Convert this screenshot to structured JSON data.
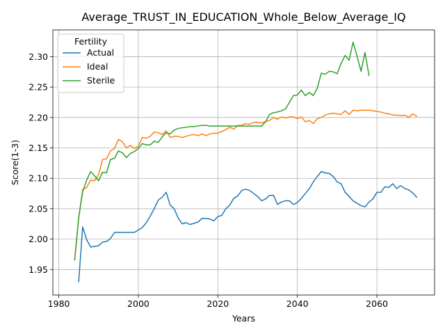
{
  "chart_data": {
    "type": "line",
    "title": "Average_TRUST_IN_EDUCATION_Whole_Below_Average_IQ",
    "xlabel": "Years",
    "ylabel": "Score(1-3)",
    "xlim": [
      1978.5,
      2074.5
    ],
    "ylim": [
      1.908,
      2.344
    ],
    "xticks": [
      1980,
      2000,
      2020,
      2040,
      2060
    ],
    "yticks": [
      1.95,
      2.0,
      2.05,
      2.1,
      2.15,
      2.2,
      2.25,
      2.3
    ],
    "grid": true,
    "legend": {
      "title": "Fertility",
      "placement": "top-left",
      "entries": [
        "Actual",
        "Ideal",
        "Sterile"
      ]
    },
    "series": [
      {
        "name": "Actual",
        "color": "#1f77b4",
        "x": [
          1985,
          1986,
          1987,
          1988,
          1989,
          1990,
          1991,
          1992,
          1993,
          1994,
          1995,
          1996,
          1997,
          1998,
          1999,
          2000,
          2001,
          2002,
          2003,
          2004,
          2005,
          2006,
          2007,
          2008,
          2009,
          2010,
          2011,
          2012,
          2013,
          2014,
          2015,
          2016,
          2017,
          2018,
          2019,
          2020,
          2021,
          2022,
          2023,
          2024,
          2025,
          2026,
          2027,
          2028,
          2029,
          2030,
          2031,
          2032,
          2033,
          2034,
          2035,
          2036,
          2037,
          2038,
          2039,
          2040,
          2041,
          2042,
          2043,
          2044,
          2045,
          2046,
          2047,
          2048,
          2049,
          2050,
          2051,
          2052,
          2053,
          2054,
          2055,
          2056,
          2057,
          2058,
          2059,
          2060,
          2061,
          2062,
          2063,
          2064,
          2065,
          2066,
          2067,
          2068,
          2069,
          2070
        ],
        "y": [
          1.93,
          2.02,
          1.999,
          1.987,
          1.988,
          1.989,
          1.995,
          1.996,
          2.001,
          2.011,
          2.011,
          2.011,
          2.011,
          2.011,
          2.011,
          2.015,
          2.019,
          2.027,
          2.038,
          2.05,
          2.064,
          2.069,
          2.077,
          2.056,
          2.05,
          2.035,
          2.025,
          2.027,
          2.024,
          2.026,
          2.028,
          2.034,
          2.034,
          2.033,
          2.03,
          2.037,
          2.039,
          2.05,
          2.056,
          2.067,
          2.071,
          2.08,
          2.082,
          2.08,
          2.075,
          2.07,
          2.063,
          2.066,
          2.072,
          2.072,
          2.057,
          2.061,
          2.063,
          2.063,
          2.057,
          2.06,
          2.067,
          2.075,
          2.083,
          2.094,
          2.103,
          2.111,
          2.109,
          2.108,
          2.103,
          2.094,
          2.091,
          2.077,
          2.07,
          2.063,
          2.059,
          2.055,
          2.053,
          2.061,
          2.066,
          2.077,
          2.077,
          2.086,
          2.085,
          2.091,
          2.083,
          2.088,
          2.083,
          2.081,
          2.076,
          2.069
        ]
      },
      {
        "name": "Ideal",
        "color": "#ff7f0e",
        "x": [
          1984,
          1985,
          1986,
          1987,
          1988,
          1989,
          1990,
          1991,
          1992,
          1993,
          1994,
          1995,
          1996,
          1997,
          1998,
          1999,
          2000,
          2001,
          2002,
          2003,
          2004,
          2005,
          2006,
          2007,
          2008,
          2009,
          2010,
          2011,
          2012,
          2013,
          2014,
          2015,
          2016,
          2017,
          2018,
          2019,
          2020,
          2021,
          2022,
          2023,
          2024,
          2025,
          2026,
          2027,
          2028,
          2029,
          2030,
          2031,
          2032,
          2033,
          2034,
          2035,
          2036,
          2037,
          2038,
          2039,
          2040,
          2041,
          2042,
          2043,
          2044,
          2045,
          2046,
          2047,
          2048,
          2049,
          2050,
          2051,
          2052,
          2053,
          2054,
          2055,
          2056,
          2057,
          2058,
          2059,
          2060,
          2061,
          2062,
          2063,
          2064,
          2065,
          2066,
          2067,
          2068,
          2069,
          2070
        ],
        "y": [
          1.966,
          2.035,
          2.081,
          2.085,
          2.097,
          2.096,
          2.106,
          2.131,
          2.132,
          2.145,
          2.149,
          2.164,
          2.16,
          2.15,
          2.154,
          2.149,
          2.153,
          2.167,
          2.166,
          2.169,
          2.176,
          2.175,
          2.172,
          2.178,
          2.167,
          2.169,
          2.169,
          2.167,
          2.169,
          2.171,
          2.172,
          2.17,
          2.173,
          2.17,
          2.173,
          2.174,
          2.174,
          2.177,
          2.18,
          2.184,
          2.181,
          2.187,
          2.187,
          2.19,
          2.189,
          2.192,
          2.192,
          2.191,
          2.193,
          2.195,
          2.2,
          2.197,
          2.201,
          2.199,
          2.201,
          2.201,
          2.198,
          2.201,
          2.193,
          2.195,
          2.19,
          2.198,
          2.2,
          2.204,
          2.206,
          2.207,
          2.206,
          2.205,
          2.211,
          2.205,
          2.212,
          2.211,
          2.212,
          2.212,
          2.212,
          2.211,
          2.21,
          2.209,
          2.207,
          2.206,
          2.204,
          2.204,
          2.203,
          2.204,
          2.2,
          2.206,
          2.202
        ]
      },
      {
        "name": "Sterile",
        "color": "#2ca02c",
        "x": [
          1984,
          1985,
          1986,
          1987,
          1988,
          1989,
          1990,
          1991,
          1992,
          1993,
          1994,
          1995,
          1996,
          1997,
          1998,
          1999,
          2000,
          2001,
          2002,
          2003,
          2004,
          2005,
          2006,
          2007,
          2008,
          2009,
          2010,
          2011,
          2012,
          2013,
          2014,
          2015,
          2016,
          2017,
          2018,
          2019,
          2020,
          2021,
          2022,
          2023,
          2024,
          2025,
          2026,
          2027,
          2028,
          2029,
          2030,
          2031,
          2032,
          2033,
          2034,
          2035,
          2036,
          2037,
          2038,
          2039,
          2040,
          2041,
          2042,
          2043,
          2044,
          2045,
          2046,
          2047,
          2048,
          2049,
          2050,
          2051,
          2052,
          2053,
          2054,
          2055,
          2056,
          2057,
          2058
        ],
        "y": [
          1.966,
          2.035,
          2.078,
          2.097,
          2.111,
          2.104,
          2.096,
          2.11,
          2.109,
          2.131,
          2.133,
          2.145,
          2.142,
          2.134,
          2.141,
          2.144,
          2.149,
          2.157,
          2.155,
          2.155,
          2.161,
          2.159,
          2.168,
          2.175,
          2.173,
          2.179,
          2.182,
          2.183,
          2.184,
          2.185,
          2.185,
          2.186,
          2.187,
          2.187,
          2.186,
          2.186,
          2.186,
          2.186,
          2.186,
          2.186,
          2.186,
          2.186,
          2.186,
          2.186,
          2.186,
          2.186,
          2.186,
          2.186,
          2.193,
          2.205,
          2.208,
          2.209,
          2.211,
          2.214,
          2.225,
          2.236,
          2.237,
          2.245,
          2.236,
          2.241,
          2.236,
          2.248,
          2.273,
          2.271,
          2.276,
          2.275,
          2.272,
          2.289,
          2.302,
          2.294,
          2.324,
          2.301,
          2.276,
          2.307,
          2.269
        ]
      }
    ]
  }
}
